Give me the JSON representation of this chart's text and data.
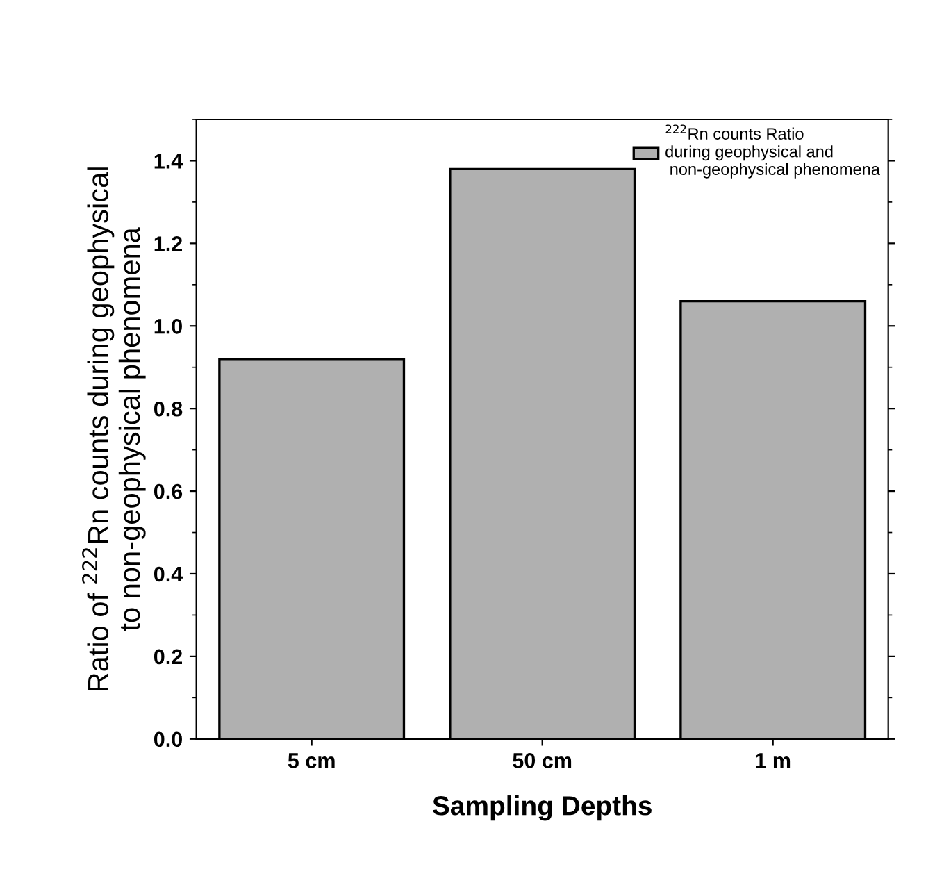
{
  "chart_data": {
    "type": "bar",
    "xlabel": "Sampling Depths",
    "ylabel": "Ratio of $^{222}$Rn counts during geophysical\nto non-geophysical phenomena",
    "categories": [
      "5 cm",
      "50 cm",
      "1 m"
    ],
    "series": [
      {
        "name": "$^{222}$Rn counts Ratio\nduring geophysical and\n non-geophysical phenomena",
        "color": "#b0b0b0",
        "values": [
          0.92,
          1.38,
          1.06
        ]
      }
    ],
    "ylim": [
      0,
      1.5
    ],
    "yticks": [
      {
        "value": 0,
        "label": "0.0"
      },
      0.2,
      0.4,
      0.6,
      0.8,
      {
        "value": 1,
        "label": "1.0"
      },
      1.2,
      1.4
    ],
    "grid": false,
    "legend": "top right"
  }
}
